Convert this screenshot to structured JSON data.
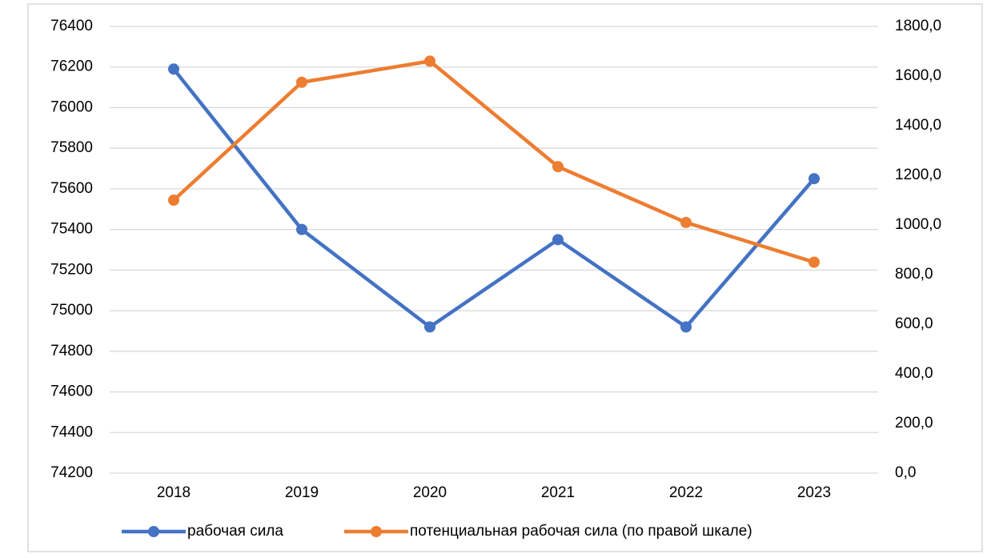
{
  "chart_data": {
    "type": "line",
    "categories": [
      "2018",
      "2019",
      "2020",
      "2021",
      "2022",
      "2023"
    ],
    "series": [
      {
        "name": "рабочая сила",
        "color": "#4472c4",
        "values": [
          76190,
          75400,
          74920,
          75350,
          74920,
          75650
        ]
      },
      {
        "name": "потенциальная рабочая сила (по правой шкале)",
        "color": "#ed7d31",
        "axis": "y2",
        "values": [
          1100,
          1575,
          1660,
          1235,
          1010,
          850
        ]
      }
    ],
    "ylim": [
      74200,
      76400
    ],
    "yticks": [
      74200,
      74400,
      74600,
      74800,
      75000,
      75200,
      75400,
      75600,
      75800,
      76000,
      76200,
      76400
    ],
    "y2lim": [
      0,
      1800
    ],
    "y2ticks": [
      {
        "value": 0,
        "label": "0,0"
      },
      {
        "value": 200,
        "label": "200,0"
      },
      {
        "value": 400,
        "label": "400,0"
      },
      {
        "value": 600,
        "label": "600,0"
      },
      {
        "value": 800,
        "label": "800,0"
      },
      {
        "value": 1000,
        "label": "1000,0"
      },
      {
        "value": 1200,
        "label": "1200,0"
      },
      {
        "value": 1400,
        "label": "1400,0"
      },
      {
        "value": 1600,
        "label": "1600,0"
      },
      {
        "value": 1800,
        "label": "1800,0"
      }
    ],
    "grid": true,
    "legend": "bottom"
  }
}
